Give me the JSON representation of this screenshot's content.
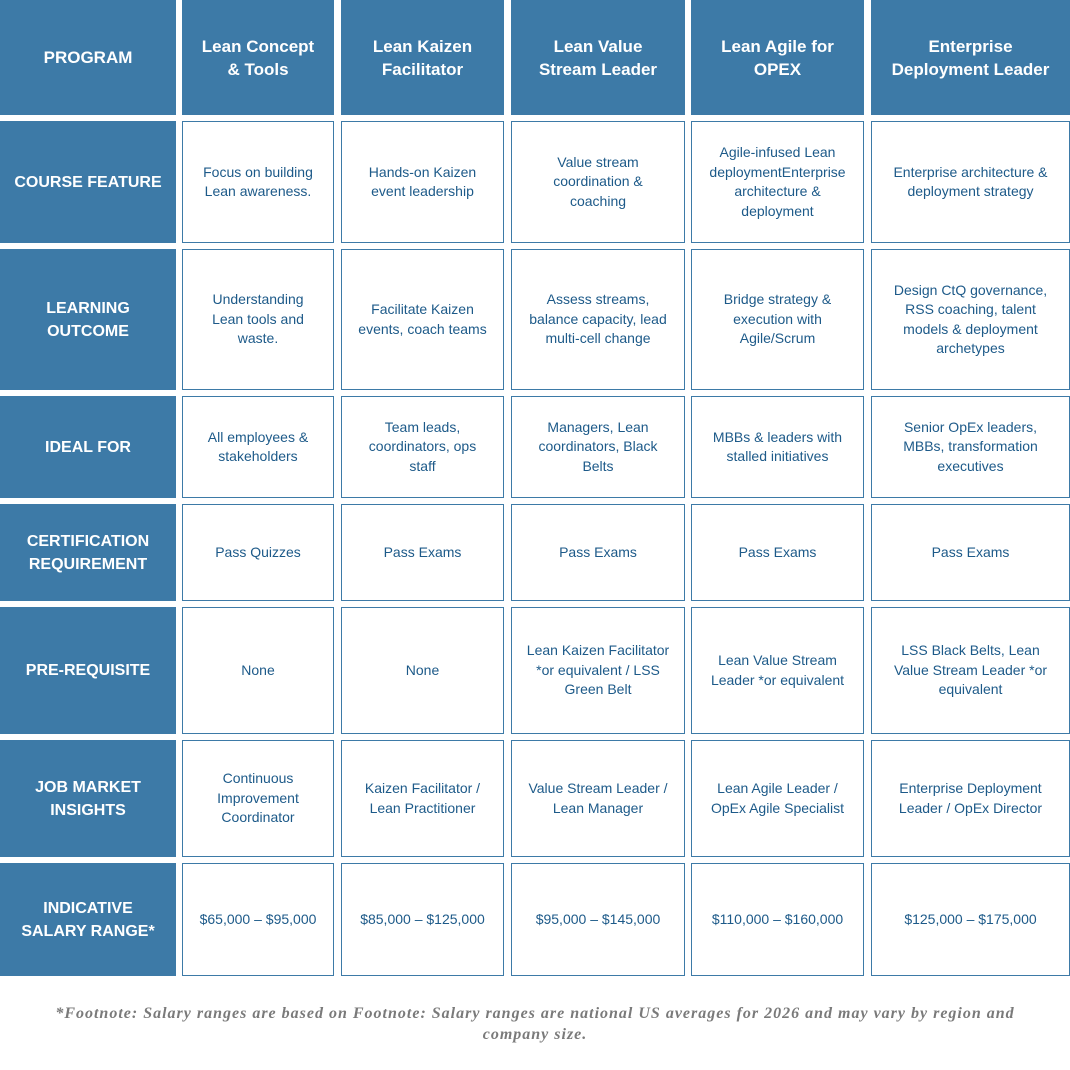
{
  "header": {
    "program": "PROGRAM",
    "columns": [
      "Lean Concept & Tools",
      "Lean Kaizen Facilitator",
      "Lean Value Stream Leader",
      "Lean Agile for OPEX",
      "Enterprise Deployment Leader"
    ]
  },
  "rows": [
    {
      "label": "COURSE FEATURE",
      "cells": [
        "Focus on building Lean awareness.",
        "Hands-on Kaizen event leadership",
        "Value stream coordination & coaching",
        "Agile-infused Lean deploymentEnterprise architecture & deployment",
        "Enterprise architecture & deployment strategy"
      ]
    },
    {
      "label": "LEARNING OUTCOME",
      "cells": [
        "Understanding Lean tools and waste.",
        "Facilitate Kaizen events, coach teams",
        "Assess streams, balance capacity, lead multi-cell change",
        "Bridge strategy & execution with Agile/Scrum",
        "Design CtQ governance, RSS coaching, talent models & deployment archetypes"
      ]
    },
    {
      "label": "IDEAL FOR",
      "cells": [
        "All employees & stakeholders",
        "Team leads, coordinators, ops staff",
        "Managers, Lean coordinators, Black Belts",
        "MBBs & leaders with stalled initiatives",
        "Senior OpEx leaders, MBBs, transformation executives"
      ]
    },
    {
      "label": "CERTIFICATION REQUIREMENT",
      "cells": [
        "Pass Quizzes",
        "Pass Exams",
        "Pass Exams",
        "Pass Exams",
        "Pass Exams"
      ]
    },
    {
      "label": "PRE-REQUISITE",
      "cells": [
        "None",
        "None",
        "Lean Kaizen Facilitator *or equivalent / LSS Green Belt",
        "Lean Value Stream Leader *or equivalent",
        "LSS Black Belts, Lean Value Stream Leader *or equivalent"
      ]
    },
    {
      "label": "JOB MARKET INSIGHTS",
      "cells": [
        "Continuous Improvement Coordinator",
        "Kaizen Facilitator / Lean Practitioner",
        "Value Stream Leader / Lean Manager",
        "Lean Agile Leader / OpEx Agile Specialist",
        "Enterprise Deployment Leader / OpEx Director"
      ]
    },
    {
      "label": "INDICATIVE SALARY RANGE*",
      "cells": [
        "$65,000 – $95,000",
        "$85,000 – $125,000",
        "$95,000 – $145,000",
        "$110,000 – $160,000",
        "$125,000 – $175,000"
      ]
    }
  ],
  "footnote": "*Footnote: Salary ranges are based on Footnote: Salary ranges are national US averages for 2026 and may vary by region and company size."
}
